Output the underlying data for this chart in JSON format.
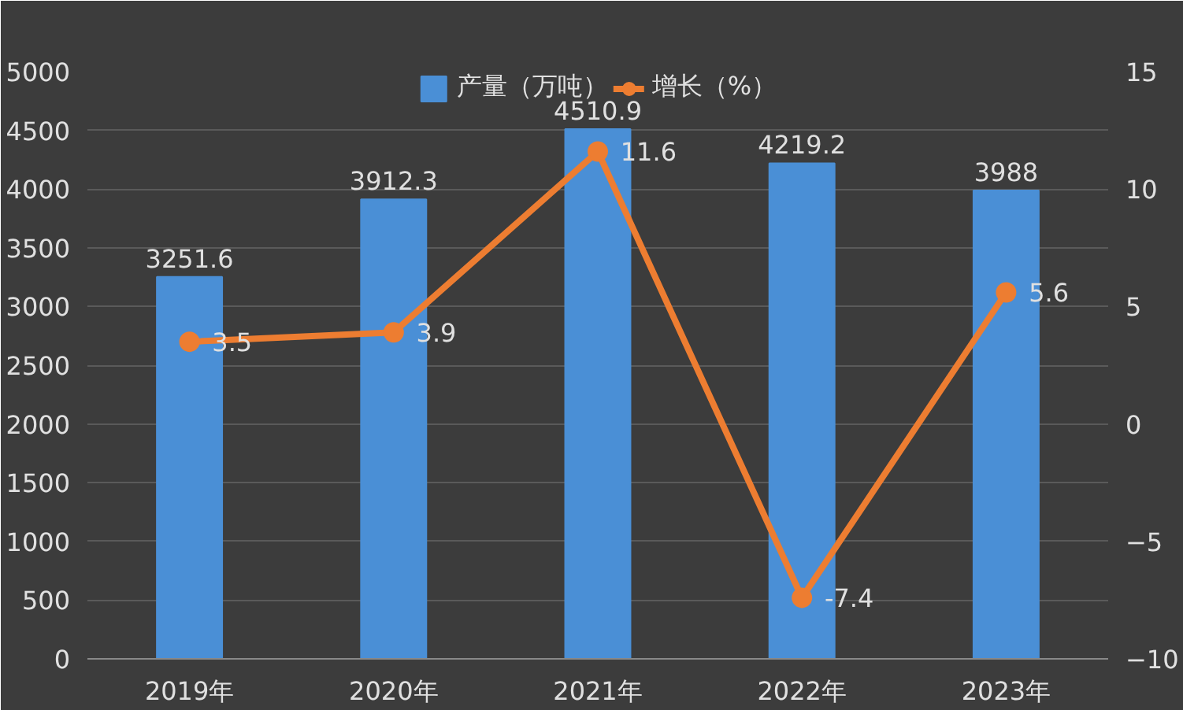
{
  "chart_data": {
    "type": "bar",
    "categories": [
      "2019年",
      "2020年",
      "2021年",
      "2022年",
      "2023年"
    ],
    "series": [
      {
        "name": "产量（万吨）",
        "color": "#4a8fd6",
        "values": [
          3251.6,
          3912.3,
          4510.9,
          4219.2,
          3988
        ]
      },
      {
        "name": "增长（%）",
        "type": "line",
        "axis": "y2",
        "color": "#ed7d31",
        "values": [
          3.5,
          3.9,
          11.6,
          -7.4,
          5.6
        ]
      }
    ],
    "ylim": [
      0,
      5000
    ],
    "yticks": [
      0,
      500,
      1000,
      1500,
      2000,
      2500,
      3000,
      3500,
      4000,
      4500,
      5000
    ],
    "y2lim": [
      -10,
      15
    ],
    "y2ticks": [
      -10,
      -5,
      0,
      5,
      10,
      15
    ],
    "grid": "y",
    "legend": "top",
    "marker": "circle",
    "data_labels": true
  }
}
